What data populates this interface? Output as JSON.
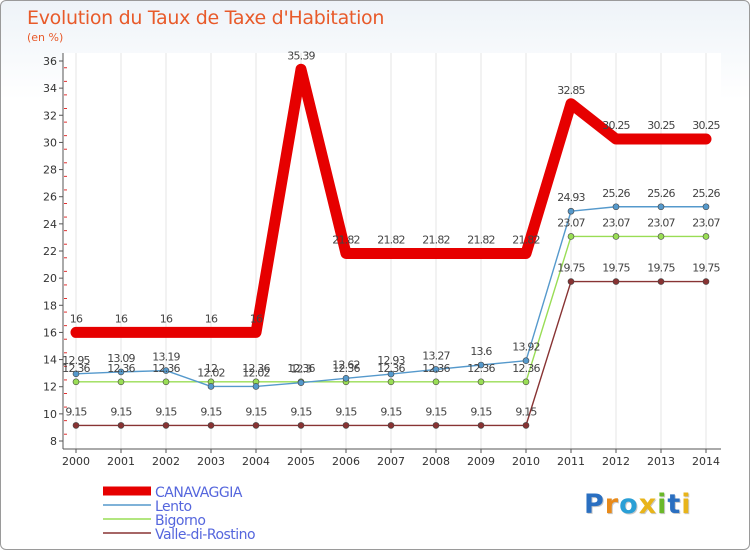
{
  "chart_data": {
    "type": "line",
    "title": "Evolution du Taux de Taxe d'Habitation",
    "subtitle": "(en %)",
    "xlabel": "",
    "ylabel": "",
    "ylim": [
      8,
      36
    ],
    "yticks": [
      8,
      10,
      12,
      14,
      16,
      18,
      20,
      22,
      24,
      26,
      28,
      30,
      32,
      34,
      36
    ],
    "categories": [
      "2000",
      "2001",
      "2002",
      "2003",
      "2004",
      "2005",
      "2006",
      "2007",
      "2008",
      "2009",
      "2010",
      "2011",
      "2012",
      "2013",
      "2014"
    ],
    "series": [
      {
        "name": "CANAVAGGIA",
        "color": "#e60000",
        "values": [
          16,
          16,
          16,
          16,
          16,
          35.39,
          21.82,
          21.82,
          21.82,
          21.82,
          21.82,
          32.85,
          30.25,
          30.25,
          30.25
        ],
        "labels": [
          "16",
          "16",
          "16",
          "16",
          "16",
          "35.39",
          "21.82",
          "21.82",
          "21.82",
          "21.82",
          "21.82",
          "32.85",
          "30.25",
          "30.25",
          "30.25"
        ]
      },
      {
        "name": "Lento",
        "color": "#5599cc",
        "values": [
          12.95,
          13.09,
          13.19,
          12.02,
          12.02,
          12.3,
          12.62,
          12.93,
          13.27,
          13.6,
          13.92,
          24.93,
          25.26,
          25.26,
          25.26
        ],
        "labels": [
          "12.95",
          "13.09",
          "13.19",
          "12.02",
          "12.02",
          "12.3",
          "12.62",
          "12.93",
          "13.27",
          "13.6",
          "13.92",
          "24.93",
          "25.26",
          "25.26",
          "25.26"
        ]
      },
      {
        "name": "Bigorno",
        "color": "#99dd55",
        "values": [
          12.36,
          12.36,
          12.36,
          12.36,
          12.36,
          12.36,
          12.36,
          12.36,
          12.36,
          12.36,
          12.36,
          23.07,
          23.07,
          23.07,
          23.07
        ],
        "labels": [
          "12.36",
          "12.36",
          "12.36",
          "12",
          "12.36",
          "12.36",
          "12.36",
          "12.36",
          "12.36",
          "12.36",
          "12.36",
          "23.07",
          "23.07",
          "23.07",
          "23.07"
        ]
      },
      {
        "name": "Valle-di-Rostino",
        "color": "#883333",
        "values": [
          9.15,
          9.15,
          9.15,
          9.15,
          9.15,
          9.15,
          9.15,
          9.15,
          9.15,
          9.15,
          9.15,
          19.75,
          19.75,
          19.75,
          19.75
        ],
        "labels": [
          "9.15",
          "9.15",
          "9.15",
          "9.15",
          "9.15",
          "9.15",
          "9.15",
          "9.15",
          "9.15",
          "9.15",
          "9.15",
          "19.75",
          "19.75",
          "19.75",
          "19.75"
        ]
      }
    ],
    "legend_position": "bottom-left"
  },
  "logo": {
    "letters": [
      "P",
      "r",
      "o",
      "x",
      "i",
      "t",
      "i"
    ],
    "colors": [
      "#2a6fc1",
      "#e88a1a",
      "#2a9fd6",
      "#e8b41a",
      "#6bb82a",
      "#2a6fc1",
      "#e8b41a"
    ]
  }
}
